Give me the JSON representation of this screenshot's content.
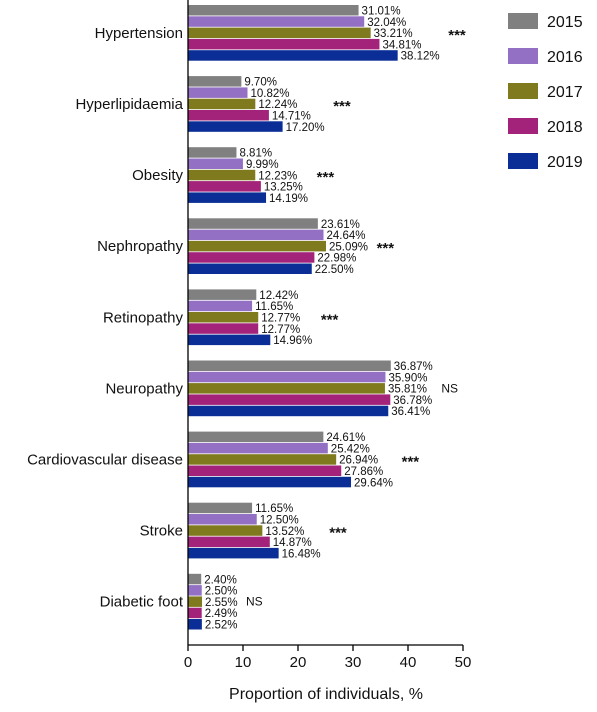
{
  "chart_data": {
    "type": "bar",
    "orientation": "horizontal",
    "title": "",
    "xlabel": "Proportion of individuals, %",
    "ylabel": "",
    "xlim": [
      0,
      50
    ],
    "xticks": [
      0,
      10,
      20,
      30,
      40,
      50
    ],
    "grid": false,
    "legend_position": "top-right",
    "categories": [
      "Hypertension",
      "Hyperlipidaemia",
      "Obesity",
      "Nephropathy",
      "Retinopathy",
      "Neuropathy",
      "Cardiovascular disease",
      "Stroke",
      "Diabetic foot"
    ],
    "series": [
      {
        "name": "2015",
        "color": "#808080",
        "values": [
          31.01,
          9.7,
          8.81,
          23.61,
          12.42,
          36.87,
          24.61,
          11.65,
          2.4
        ],
        "labels": [
          "31.01%",
          "9.70%",
          "8.81%",
          "23.61%",
          "12.42%",
          "36.87%",
          "24.61%",
          "11.65%",
          "2.40%"
        ]
      },
      {
        "name": "2016",
        "color": "#9370C4",
        "values": [
          32.04,
          10.82,
          9.99,
          24.64,
          11.65,
          35.9,
          25.42,
          12.5,
          2.5
        ],
        "labels": [
          "32.04%",
          "10.82%",
          "9.99%",
          "24.64%",
          "11.65%",
          "35.90%",
          "25.42%",
          "12.50%",
          "2.50%"
        ]
      },
      {
        "name": "2017",
        "color": "#807A1E",
        "values": [
          33.21,
          12.24,
          12.23,
          25.09,
          12.77,
          35.81,
          26.94,
          13.52,
          2.55
        ],
        "labels": [
          "33.21%",
          "12.24%",
          "12.23%",
          "25.09%",
          "12.77%",
          "35.81%",
          "26.94%",
          "13.52%",
          "2.55%"
        ]
      },
      {
        "name": "2018",
        "color": "#A3227A",
        "values": [
          34.81,
          14.71,
          13.25,
          22.98,
          12.77,
          36.78,
          27.86,
          14.87,
          2.49
        ],
        "labels": [
          "34.81%",
          "14.71%",
          "13.25%",
          "22.98%",
          "12.77%",
          "36.78%",
          "27.86%",
          "14.87%",
          "2.49%"
        ]
      },
      {
        "name": "2019",
        "color": "#0A2D96",
        "values": [
          38.12,
          17.2,
          14.19,
          22.5,
          14.96,
          36.41,
          29.64,
          16.48,
          2.52
        ],
        "labels": [
          "38.12%",
          "17.20%",
          "14.19%",
          "22.50%",
          "14.96%",
          "36.41%",
          "29.64%",
          "16.48%",
          "2.52%"
        ]
      }
    ],
    "significance": [
      "***",
      "***",
      "***",
      "***",
      "***",
      "NS",
      "***",
      "***",
      "NS"
    ]
  }
}
